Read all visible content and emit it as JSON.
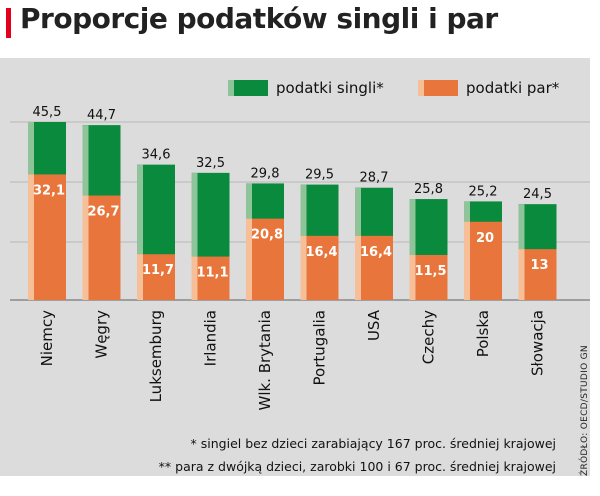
{
  "title": "Proporcje podatków singli i par",
  "source": "ŹRÓDŁO: OECD/STUDIO GN",
  "footnotes": [
    "* singiel bez dzieci zarabiający 167 proc. średniej krajowej",
    "** para z dwójką dzieci, zarobki 100 i 67 proc. średniej krajowej"
  ],
  "colors": {
    "singles": "#0a8a3c",
    "singles_light": "#8fc49a",
    "couples": "#e8763c",
    "couples_light": "#f6bf98",
    "panel": "#dcdcdc",
    "accent": "#e2001a"
  },
  "chart_data": {
    "type": "bar",
    "title": "Proporcje podatków singli i par",
    "categories": [
      "Niemcy",
      "Węgry",
      "Luksemburg",
      "Irlandia",
      "Wlk. Brytania",
      "Portugalia",
      "USA",
      "Czechy",
      "Polska",
      "Słowacja"
    ],
    "series": [
      {
        "name": "podatki singli*",
        "values": [
          45.5,
          44.7,
          34.6,
          32.5,
          29.8,
          29.5,
          28.7,
          25.8,
          25.2,
          24.5
        ],
        "labels": [
          "45,5",
          "44,7",
          "34,6",
          "32,5",
          "29,8",
          "29,5",
          "28,7",
          "25,8",
          "25,2",
          "24,5"
        ]
      },
      {
        "name": "podatki par*",
        "values": [
          32.1,
          26.7,
          11.7,
          11.1,
          20.8,
          16.4,
          16.4,
          11.5,
          20,
          13
        ],
        "labels": [
          "32,1",
          "26,7",
          "11,7",
          "11,1",
          "20,8",
          "16,4",
          "16,4",
          "11,5",
          "20",
          "13"
        ]
      }
    ],
    "xlabel": "",
    "ylabel": "",
    "ylim": [
      0,
      45.5
    ],
    "grid": true,
    "legend": "top-right"
  }
}
